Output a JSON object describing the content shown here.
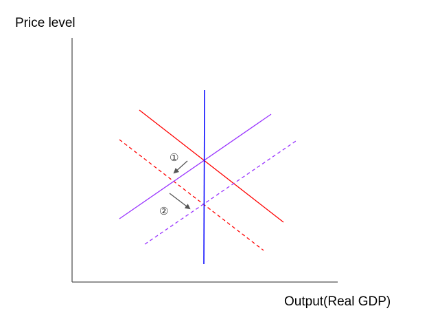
{
  "axes": {
    "y_label": "Price level",
    "x_label": "Output(Real GDP)"
  },
  "markers": {
    "first": "①",
    "second": "②"
  },
  "colors": {
    "demand": "#ff0000",
    "supply": "#9933ff",
    "long_run_supply": "#0000ff",
    "axis": "#555555",
    "arrow": "#555555"
  },
  "curves": [
    {
      "name": "demand",
      "style": "solid"
    },
    {
      "name": "demand-shifted",
      "style": "dashed"
    },
    {
      "name": "supply",
      "style": "solid"
    },
    {
      "name": "supply-shifted",
      "style": "dashed"
    },
    {
      "name": "long-run-supply",
      "style": "solid"
    }
  ]
}
